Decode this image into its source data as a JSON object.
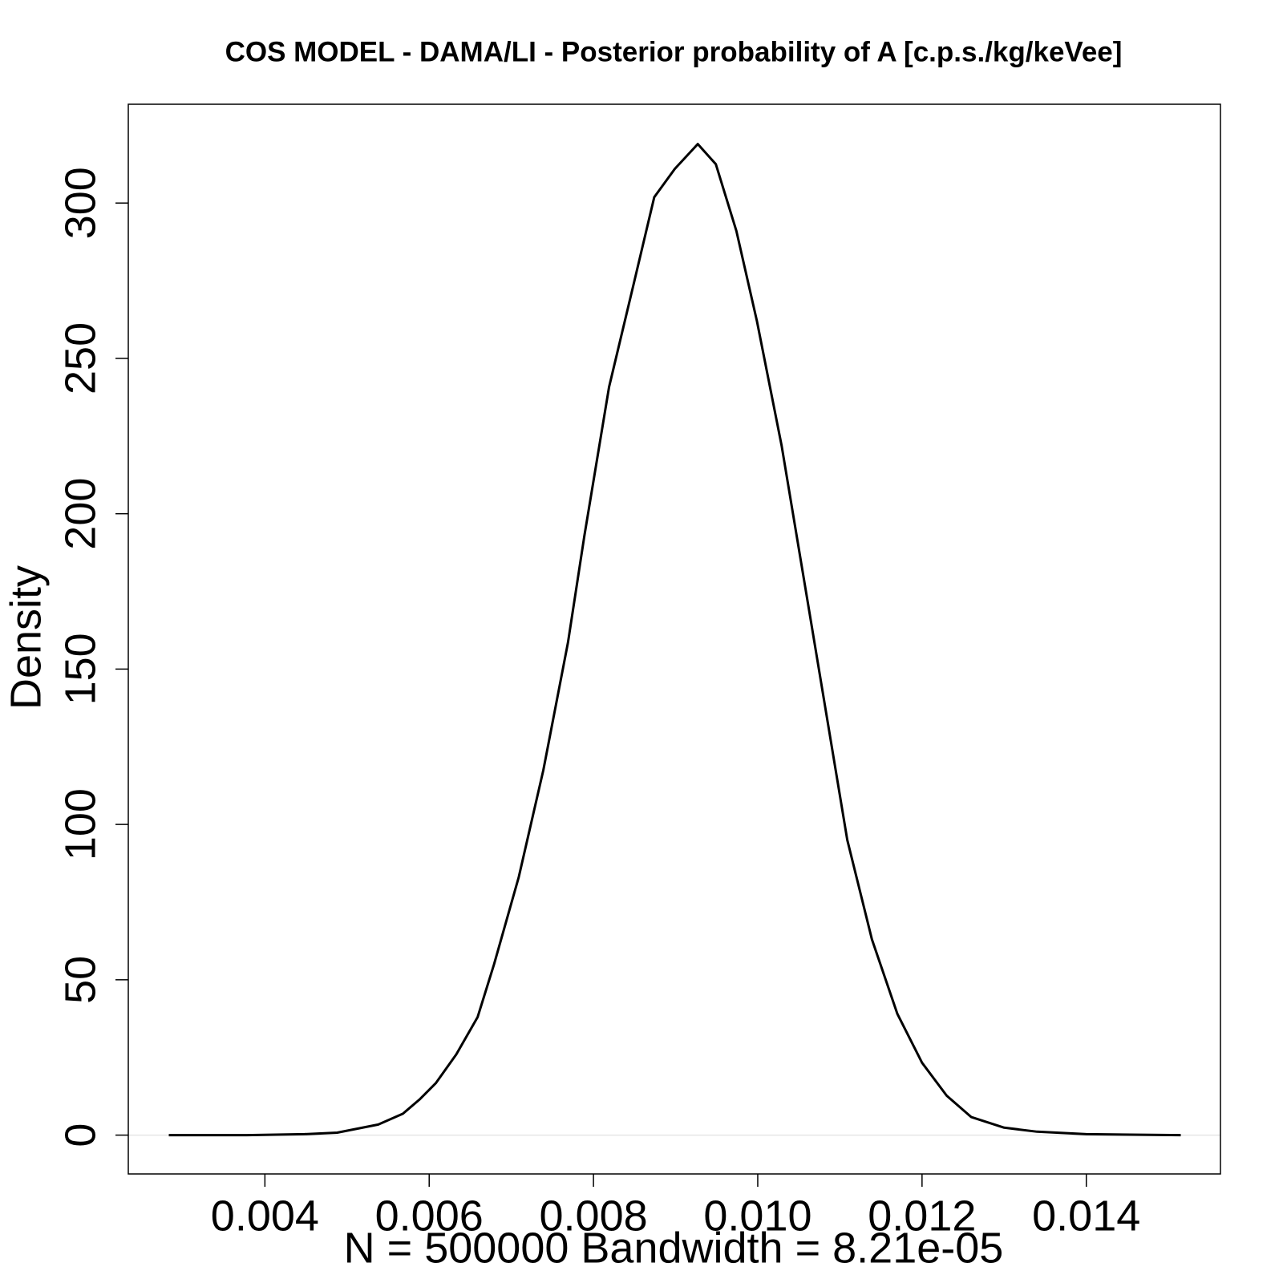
{
  "chart_data": {
    "type": "line",
    "title": "COS MODEL - DAMA/LI - Posterior probability of A [c.p.s./kg/keVee]",
    "x_label": "N = 500000   Bandwidth = 8.21e-05",
    "y_label": "Density",
    "x": [
      0.00283,
      0.00378,
      0.00448,
      0.00488,
      0.00538,
      0.00568,
      0.00588,
      0.00608,
      0.00633,
      0.00659,
      0.00679,
      0.00709,
      0.00739,
      0.00769,
      0.00789,
      0.00819,
      0.00849,
      0.00874,
      0.00899,
      0.00927,
      0.00949,
      0.00974,
      0.00999,
      0.01029,
      0.01059,
      0.01079,
      0.01109,
      0.01139,
      0.0117,
      0.012,
      0.0123,
      0.0126,
      0.013,
      0.0134,
      0.014,
      0.01515
    ],
    "values": [
      0,
      0,
      0.3,
      0.8,
      3.4,
      6.9,
      11.4,
      16.7,
      26,
      38,
      55,
      83,
      117.5,
      158.6,
      193,
      240.8,
      274,
      301.9,
      311,
      319,
      312.5,
      291,
      262,
      222,
      174.5,
      142.7,
      95,
      63,
      39,
      23.3,
      12.7,
      5.8,
      2.4,
      1.1,
      0.3,
      0
    ],
    "color": "#000000",
    "xlim": [
      0.002337,
      0.015633
    ],
    "ylim": [
      -12.5,
      331.8
    ],
    "xticks": [
      0.004,
      0.006,
      0.008,
      {
        "value": 0.01,
        "label": "0.010"
      },
      0.012,
      0.014
    ],
    "yticks": [
      0,
      50,
      100,
      150,
      200,
      250,
      300
    ],
    "grid": false,
    "zero_line": true,
    "zero_line_color": "#e6e6e6"
  }
}
